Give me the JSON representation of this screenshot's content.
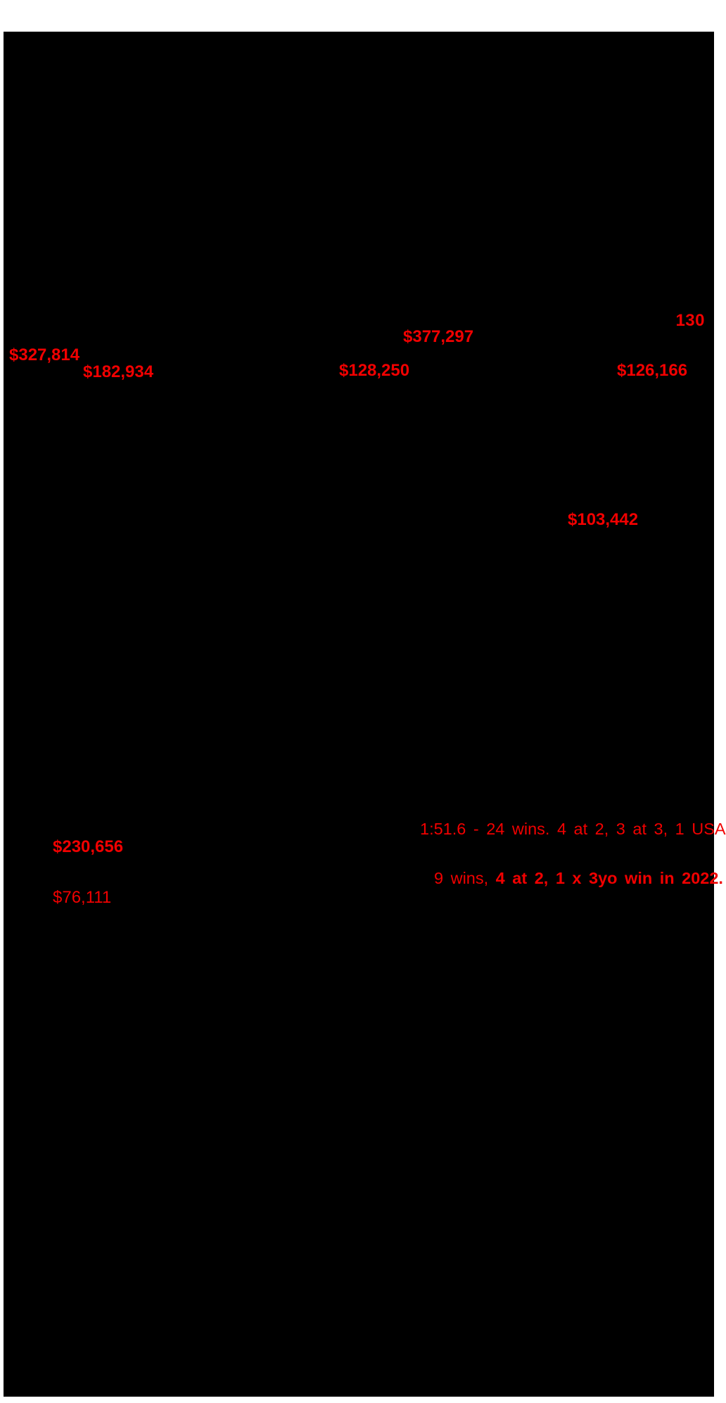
{
  "colors": {
    "page_bg": "#ffffff",
    "panel_bg": "#000000",
    "accent_red": "#f10000"
  },
  "lot": {
    "number": "130"
  },
  "amounts": [
    "$377,297",
    "$327,814",
    "$182,934",
    "$128,250",
    "$126,166",
    "$103,442",
    "$230,656",
    "$76,111"
  ],
  "records": {
    "line1": "1:51.6 - 24 wins. 4 at 2, 3 at 3, 1 USA",
    "line2_prefix": "9 wins, ",
    "line2_emphasis": "4 at 2, 1 x 3yo win in 2022."
  }
}
